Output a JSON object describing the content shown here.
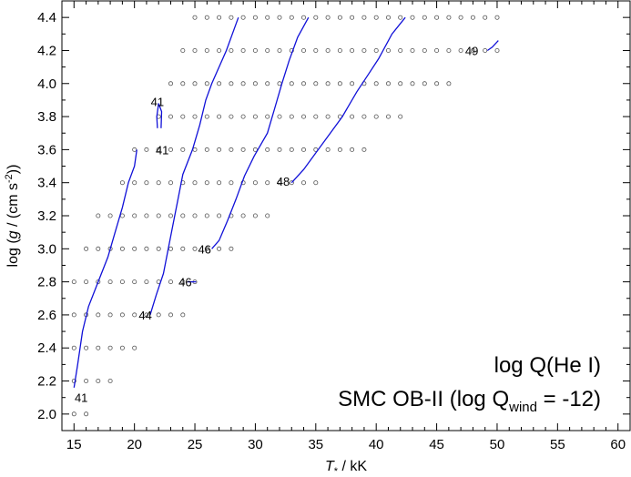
{
  "chart_data": {
    "type": "scatter",
    "xlabel": "T* / kK",
    "ylabel": "log (g / (cm s-2))",
    "xlim": [
      14,
      61
    ],
    "ylim": [
      1.9,
      4.5
    ],
    "x_ticks": [
      15,
      20,
      25,
      30,
      35,
      40,
      45,
      50,
      55,
      60
    ],
    "x_tick_labels": [
      "15",
      "20",
      "25",
      "30",
      "35",
      "40",
      "45",
      "50",
      "55",
      "60"
    ],
    "y_ticks": [
      2.0,
      2.2,
      2.4,
      2.6,
      2.8,
      3.0,
      3.2,
      3.4,
      3.6,
      3.8,
      4.0,
      4.2,
      4.4
    ],
    "y_tick_labels": [
      "2.0",
      "2.2",
      "2.4",
      "2.6",
      "2.8",
      "3.0",
      "3.2",
      "3.4",
      "3.6",
      "3.8",
      "4.0",
      "4.2",
      "4.4"
    ],
    "legend_line1": "log Q(He I)",
    "legend_line2_prefix": "SMC OB-II (log Q",
    "legend_line2_sub": "wind",
    "legend_line2_suffix": " = -12)",
    "grid_rows": [
      {
        "logg": 4.4,
        "t_min": 25,
        "t_max": 50
      },
      {
        "logg": 4.2,
        "t_min": 24,
        "t_max": 50
      },
      {
        "logg": 4.0,
        "t_min": 23,
        "t_max": 46
      },
      {
        "logg": 3.8,
        "t_min": 22,
        "t_max": 42
      },
      {
        "logg": 3.6,
        "t_min": 20,
        "t_max": 39
      },
      {
        "logg": 3.4,
        "t_min": 19,
        "t_max": 35
      },
      {
        "logg": 3.2,
        "t_min": 17,
        "t_max": 31
      },
      {
        "logg": 3.0,
        "t_min": 16,
        "t_max": 28
      },
      {
        "logg": 2.8,
        "t_min": 15,
        "t_max": 25
      },
      {
        "logg": 2.6,
        "t_min": 15,
        "t_max": 24
      },
      {
        "logg": 2.4,
        "t_min": 15,
        "t_max": 20
      },
      {
        "logg": 2.2,
        "t_min": 15,
        "t_max": 18
      },
      {
        "logg": 2.0,
        "t_min": 15,
        "t_max": 16
      }
    ],
    "contours": [
      {
        "label": "41",
        "points": [
          [
            15.0,
            2.16
          ],
          [
            15.3,
            2.3
          ],
          [
            15.7,
            2.5
          ],
          [
            16.2,
            2.65
          ],
          [
            17.0,
            2.8
          ],
          [
            17.8,
            2.95
          ],
          [
            18.4,
            3.1
          ],
          [
            19.0,
            3.25
          ],
          [
            19.5,
            3.4
          ],
          [
            20.0,
            3.5
          ],
          [
            20.2,
            3.6
          ]
        ]
      },
      {
        "label": "41",
        "points": [
          [
            21.9,
            3.73
          ],
          [
            21.85,
            3.8
          ],
          [
            22.0,
            3.88
          ],
          [
            22.25,
            3.83
          ],
          [
            22.2,
            3.73
          ]
        ]
      },
      {
        "label": "44",
        "points": [
          [
            21.3,
            2.6
          ],
          [
            21.8,
            2.72
          ],
          [
            22.4,
            2.85
          ],
          [
            22.8,
            3.0
          ],
          [
            23.2,
            3.15
          ],
          [
            23.6,
            3.3
          ],
          [
            24.0,
            3.45
          ],
          [
            24.8,
            3.6
          ],
          [
            25.4,
            3.75
          ],
          [
            25.9,
            3.9
          ],
          [
            26.4,
            4.0
          ],
          [
            27.0,
            4.1
          ],
          [
            27.6,
            4.2
          ],
          [
            28.1,
            4.3
          ],
          [
            28.6,
            4.4
          ]
        ]
      },
      {
        "label": "46",
        "points": [
          [
            24.4,
            2.8
          ],
          [
            25.1,
            2.8
          ]
        ]
      },
      {
        "label": "46",
        "points": [
          [
            26.4,
            3.0
          ],
          [
            27.0,
            3.05
          ],
          [
            27.7,
            3.17
          ],
          [
            28.4,
            3.3
          ],
          [
            29.1,
            3.44
          ],
          [
            29.9,
            3.56
          ],
          [
            31.0,
            3.7
          ],
          [
            31.6,
            3.85
          ],
          [
            32.2,
            4.0
          ],
          [
            32.8,
            4.14
          ],
          [
            33.5,
            4.28
          ],
          [
            34.4,
            4.4
          ]
        ]
      },
      {
        "label": "48",
        "points": [
          [
            33.0,
            3.4
          ],
          [
            34.0,
            3.48
          ],
          [
            35.0,
            3.58
          ],
          [
            36.0,
            3.68
          ],
          [
            37.2,
            3.8
          ],
          [
            38.4,
            3.95
          ],
          [
            39.3,
            4.05
          ],
          [
            40.2,
            4.15
          ],
          [
            41.3,
            4.3
          ],
          [
            42.4,
            4.4
          ]
        ]
      },
      {
        "label": "49",
        "points": [
          [
            49.2,
            4.2
          ],
          [
            49.6,
            4.22
          ],
          [
            50.1,
            4.26
          ]
        ]
      }
    ],
    "contour_labels": [
      {
        "text": "41",
        "x": 15.6,
        "y": 2.1
      },
      {
        "text": "41",
        "x": 21.9,
        "y": 3.89
      },
      {
        "text": "41",
        "x": 22.3,
        "y": 3.6
      },
      {
        "text": "44",
        "x": 20.9,
        "y": 2.6
      },
      {
        "text": "46",
        "x": 24.2,
        "y": 2.8
      },
      {
        "text": "46",
        "x": 25.8,
        "y": 3.0
      },
      {
        "text": "48",
        "x": 32.3,
        "y": 3.41
      },
      {
        "text": "49",
        "x": 47.9,
        "y": 4.2
      }
    ],
    "colors": {
      "contour": "#1010d8",
      "axes": "#000000",
      "marker": "#555555"
    }
  }
}
